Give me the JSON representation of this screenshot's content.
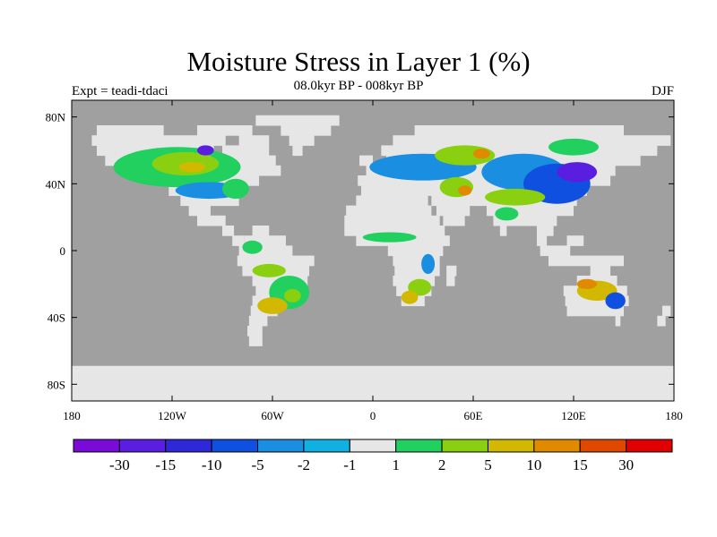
{
  "chart_data": {
    "type": "heatmap",
    "title": "Moisture Stress in Layer 1 (%)",
    "subtitle": "08.0kyr BP - 008kyr BP",
    "left_label": "Expt = teadi-tdaci",
    "right_label": "DJF",
    "x_range": [
      -180,
      180
    ],
    "y_range": [
      -90,
      90
    ],
    "x_ticks": [
      {
        "value": -180,
        "label": "180"
      },
      {
        "value": -120,
        "label": "120W"
      },
      {
        "value": -60,
        "label": "60W"
      },
      {
        "value": 0,
        "label": "0"
      },
      {
        "value": 60,
        "label": "60E"
      },
      {
        "value": 120,
        "label": "120E"
      },
      {
        "value": 180,
        "label": "180"
      }
    ],
    "y_ticks": [
      {
        "value": 80,
        "label": "80N"
      },
      {
        "value": 40,
        "label": "40N"
      },
      {
        "value": 0,
        "label": "0"
      },
      {
        "value": -40,
        "label": "40S"
      },
      {
        "value": -80,
        "label": "80S"
      }
    ],
    "missing_color": "#a0a0a0",
    "levels": [
      "-30",
      "-15",
      "-10",
      "-5",
      "-2",
      "-1",
      "1",
      "2",
      "5",
      "10",
      "15",
      "30"
    ],
    "colors": [
      "#7a0ad8",
      "#5a1ee0",
      "#2e28d8",
      "#1050e0",
      "#1a8ee0",
      "#10b0e0",
      "#e6e6e6",
      "#22d060",
      "#8ad010",
      "#d2b800",
      "#e08a00",
      "#e04800",
      "#e00000"
    ],
    "land_bands": [
      {
        "lat": 78,
        "segs": [
          [
            -70,
            -20
          ]
        ]
      },
      {
        "lat": 72,
        "segs": [
          [
            -165,
            -125
          ],
          [
            -105,
            -72
          ],
          [
            -55,
            -25
          ],
          [
            25,
            150
          ]
        ]
      },
      {
        "lat": 66,
        "segs": [
          [
            -168,
            -88
          ],
          [
            -80,
            -62
          ],
          [
            -50,
            -35
          ],
          [
            12,
            178
          ]
        ]
      },
      {
        "lat": 60,
        "segs": [
          [
            -165,
            -95
          ],
          [
            -90,
            -62
          ],
          [
            -48,
            -42
          ],
          [
            5,
            170
          ]
        ]
      },
      {
        "lat": 54,
        "segs": [
          [
            -160,
            -58
          ],
          [
            -8,
            0
          ],
          [
            8,
            160
          ]
        ]
      },
      {
        "lat": 48,
        "segs": [
          [
            -128,
            -55
          ],
          [
            -4,
            145
          ]
        ]
      },
      {
        "lat": 42,
        "segs": [
          [
            -124,
            -68
          ],
          [
            -9,
            142
          ]
        ]
      },
      {
        "lat": 36,
        "segs": [
          [
            -122,
            -76
          ],
          [
            -7,
            128
          ]
        ]
      },
      {
        "lat": 30,
        "segs": [
          [
            -115,
            -80
          ],
          [
            -10,
            33
          ],
          [
            35,
            122
          ]
        ]
      },
      {
        "lat": 24,
        "segs": [
          [
            -110,
            -97
          ],
          [
            -16,
            35
          ],
          [
            38,
            58
          ],
          [
            68,
            120
          ]
        ]
      },
      {
        "lat": 18,
        "segs": [
          [
            -105,
            -88
          ],
          [
            -17,
            40
          ],
          [
            42,
            55
          ],
          [
            72,
            110
          ]
        ]
      },
      {
        "lat": 12,
        "segs": [
          [
            -90,
            -83
          ],
          [
            -72,
            -62
          ],
          [
            -17,
            43
          ],
          [
            76,
            80
          ],
          [
            98,
            108
          ]
        ]
      },
      {
        "lat": 6,
        "segs": [
          [
            -84,
            -77
          ],
          [
            -77,
            -52
          ],
          [
            -10,
            46
          ],
          [
            98,
            104
          ],
          [
            116,
            126
          ]
        ]
      },
      {
        "lat": 0,
        "segs": [
          [
            -80,
            -48
          ],
          [
            9,
            42
          ],
          [
            100,
            118
          ]
        ]
      },
      {
        "lat": -6,
        "segs": [
          [
            -81,
            -35
          ],
          [
            12,
            40
          ],
          [
            105,
            150
          ]
        ]
      },
      {
        "lat": -12,
        "segs": [
          [
            -78,
            -38
          ],
          [
            13,
            40
          ],
          [
            44,
            50
          ],
          [
            130,
            142
          ]
        ]
      },
      {
        "lat": -18,
        "segs": [
          [
            -72,
            -39
          ],
          [
            12,
            37
          ],
          [
            44,
            49
          ],
          [
            122,
            146
          ]
        ]
      },
      {
        "lat": -24,
        "segs": [
          [
            -70,
            -42
          ],
          [
            14,
            35
          ],
          [
            114,
            152
          ]
        ]
      },
      {
        "lat": -30,
        "segs": [
          [
            -72,
            -50
          ],
          [
            17,
            31
          ],
          [
            115,
            153
          ]
        ]
      },
      {
        "lat": -36,
        "segs": [
          [
            -73,
            -57
          ],
          [
            116,
            150
          ],
          [
            173,
            178
          ]
        ]
      },
      {
        "lat": -42,
        "segs": [
          [
            -74,
            -63
          ],
          [
            145,
            148
          ],
          [
            170,
            175
          ]
        ]
      },
      {
        "lat": -48,
        "segs": [
          [
            -75,
            -66
          ]
        ]
      },
      {
        "lat": -54,
        "segs": [
          [
            -74,
            -66
          ]
        ]
      },
      {
        "lat": -72,
        "segs": [
          [
            -180,
            180
          ]
        ]
      },
      {
        "lat": -78,
        "segs": [
          [
            -180,
            180
          ]
        ]
      },
      {
        "lat": -84,
        "segs": [
          [
            -180,
            180
          ]
        ]
      },
      {
        "lat": -90,
        "segs": [
          [
            -180,
            180
          ]
        ]
      }
    ],
    "anomaly_patches": [
      {
        "lon": -117,
        "lat": 50,
        "rx": 38,
        "ry": 12,
        "level": 7
      },
      {
        "lon": -112,
        "lat": 52,
        "rx": 20,
        "ry": 7,
        "level": 8
      },
      {
        "lon": -108,
        "lat": 50,
        "rx": 8,
        "ry": 3,
        "level": 9
      },
      {
        "lon": -98,
        "lat": 36,
        "rx": 20,
        "ry": 5,
        "level": 4
      },
      {
        "lon": -82,
        "lat": 37,
        "rx": 8,
        "ry": 6,
        "level": 7
      },
      {
        "lon": -100,
        "lat": 60,
        "rx": 5,
        "ry": 3,
        "level": 1
      },
      {
        "lon": -50,
        "lat": -25,
        "rx": 12,
        "ry": 10,
        "level": 7
      },
      {
        "lon": -48,
        "lat": -27,
        "rx": 5,
        "ry": 4,
        "level": 8
      },
      {
        "lon": -60,
        "lat": -33,
        "rx": 9,
        "ry": 5,
        "level": 9
      },
      {
        "lon": -62,
        "lat": -12,
        "rx": 10,
        "ry": 4,
        "level": 8
      },
      {
        "lon": -72,
        "lat": 2,
        "rx": 6,
        "ry": 4,
        "level": 7
      },
      {
        "lon": 10,
        "lat": 8,
        "rx": 16,
        "ry": 3,
        "level": 7
      },
      {
        "lon": 28,
        "lat": -22,
        "rx": 7,
        "ry": 5,
        "level": 8
      },
      {
        "lon": 22,
        "lat": -28,
        "rx": 5,
        "ry": 4,
        "level": 9
      },
      {
        "lon": 33,
        "lat": -8,
        "rx": 4,
        "ry": 6,
        "level": 4
      },
      {
        "lon": 30,
        "lat": 50,
        "rx": 32,
        "ry": 8,
        "level": 4
      },
      {
        "lon": 55,
        "lat": 57,
        "rx": 18,
        "ry": 6,
        "level": 8
      },
      {
        "lon": 65,
        "lat": 58,
        "rx": 5,
        "ry": 3,
        "level": 10
      },
      {
        "lon": 50,
        "lat": 38,
        "rx": 10,
        "ry": 6,
        "level": 8
      },
      {
        "lon": 55,
        "lat": 36,
        "rx": 4,
        "ry": 3,
        "level": 10
      },
      {
        "lon": 90,
        "lat": 47,
        "rx": 25,
        "ry": 11,
        "level": 4
      },
      {
        "lon": 110,
        "lat": 40,
        "rx": 20,
        "ry": 12,
        "level": 3
      },
      {
        "lon": 122,
        "lat": 47,
        "rx": 12,
        "ry": 6,
        "level": 1
      },
      {
        "lon": 85,
        "lat": 32,
        "rx": 18,
        "ry": 5,
        "level": 8
      },
      {
        "lon": 120,
        "lat": 62,
        "rx": 15,
        "ry": 5,
        "level": 7
      },
      {
        "lon": 80,
        "lat": 22,
        "rx": 7,
        "ry": 4,
        "level": 7
      },
      {
        "lon": 134,
        "lat": -24,
        "rx": 12,
        "ry": 6,
        "level": 9
      },
      {
        "lon": 128,
        "lat": -20,
        "rx": 6,
        "ry": 3,
        "level": 10
      },
      {
        "lon": 145,
        "lat": -30,
        "rx": 6,
        "ry": 5,
        "level": 3
      }
    ]
  }
}
